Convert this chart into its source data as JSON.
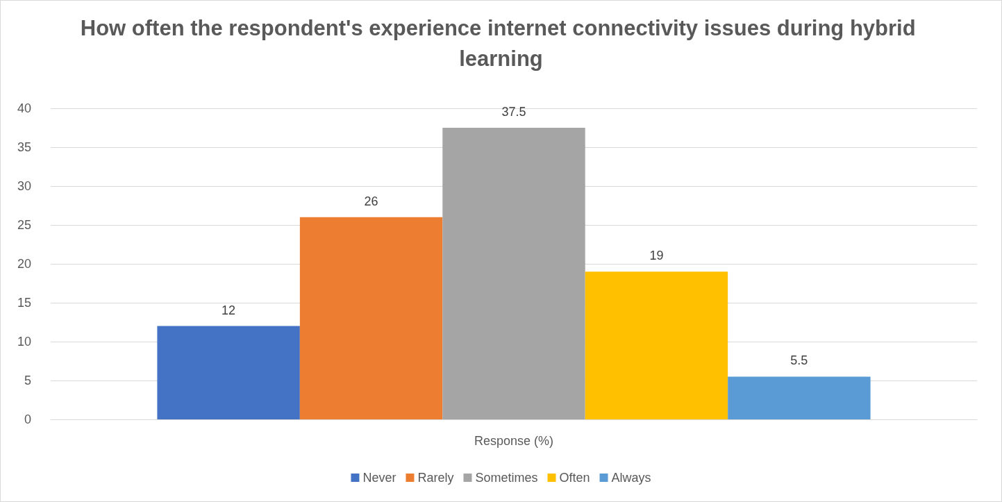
{
  "chart_data": {
    "type": "bar",
    "title": "How often the respondent's experience internet connectivity issues during hybrid learning",
    "categories": [
      "Response (%)"
    ],
    "series": [
      {
        "name": "Never",
        "color": "#4472c4",
        "values": [
          12
        ]
      },
      {
        "name": "Rarely",
        "color": "#ed7d31",
        "values": [
          26
        ]
      },
      {
        "name": "Sometimes",
        "color": "#a5a5a5",
        "values": [
          37.5
        ]
      },
      {
        "name": "Often",
        "color": "#ffc000",
        "values": [
          19
        ]
      },
      {
        "name": "Always",
        "color": "#5b9bd5",
        "values": [
          5.5
        ]
      }
    ],
    "ylim": [
      0,
      40
    ],
    "yticks": [
      0,
      5,
      10,
      15,
      20,
      25,
      30,
      35,
      40
    ],
    "grid": "y",
    "legend": "bottom",
    "data_labels": true
  }
}
